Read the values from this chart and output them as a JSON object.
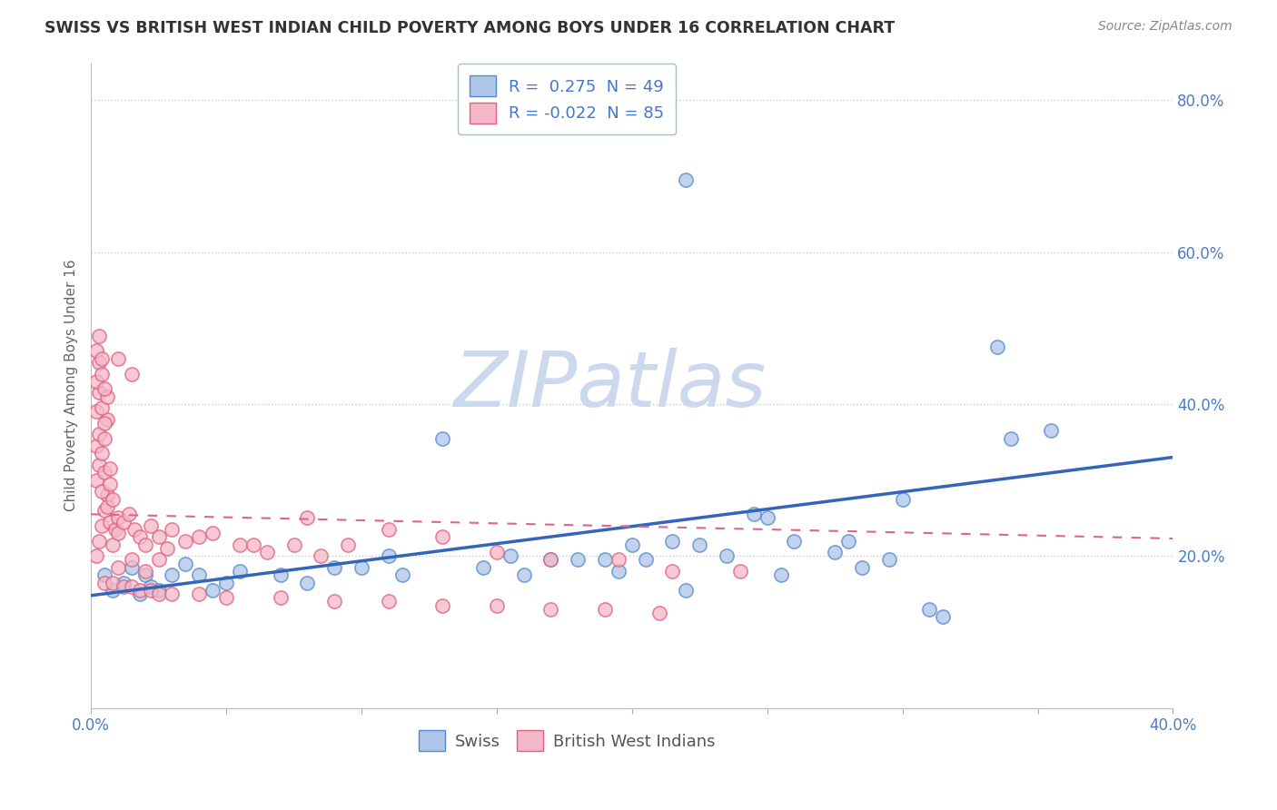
{
  "title": "SWISS VS BRITISH WEST INDIAN CHILD POVERTY AMONG BOYS UNDER 16 CORRELATION CHART",
  "source": "Source: ZipAtlas.com",
  "ylabel": "Child Poverty Among Boys Under 16",
  "xlim": [
    0.0,
    0.4
  ],
  "ylim": [
    0.0,
    0.85
  ],
  "x_ticks": [
    0.0,
    0.05,
    0.1,
    0.15,
    0.2,
    0.25,
    0.3,
    0.35,
    0.4
  ],
  "y_ticks": [
    0.0,
    0.2,
    0.4,
    0.6,
    0.8
  ],
  "y_tick_labels": [
    "",
    "20.0%",
    "40.0%",
    "60.0%",
    "80.0%"
  ],
  "x_tick_labels": [
    "0.0%",
    "",
    "",
    "",
    "",
    "",
    "",
    "",
    "40.0%"
  ],
  "swiss_R": 0.275,
  "swiss_N": 49,
  "bwi_R": -0.022,
  "bwi_N": 85,
  "swiss_color": "#aec6e8",
  "bwi_color": "#f4b8c8",
  "swiss_edge_color": "#5588cc",
  "bwi_edge_color": "#e06080",
  "swiss_line_color": "#3366bb",
  "bwi_line_color": "#dd6688",
  "watermark_color": "#ccd8ee",
  "background_color": "#ffffff",
  "grid_color": "#cccccc",
  "swiss_intercept": 0.148,
  "swiss_slope": 0.455,
  "bwi_intercept": 0.255,
  "bwi_slope": -0.08,
  "swiss_points_x": [
    0.005,
    0.008,
    0.012,
    0.015,
    0.018,
    0.02,
    0.022,
    0.025,
    0.03,
    0.035,
    0.04,
    0.045,
    0.05,
    0.055,
    0.07,
    0.08,
    0.09,
    0.1,
    0.11,
    0.115,
    0.13,
    0.145,
    0.155,
    0.16,
    0.17,
    0.18,
    0.19,
    0.195,
    0.2,
    0.205,
    0.215,
    0.22,
    0.225,
    0.235,
    0.245,
    0.25,
    0.255,
    0.26,
    0.275,
    0.28,
    0.285,
    0.295,
    0.3,
    0.31,
    0.315,
    0.335,
    0.34,
    0.355,
    0.22
  ],
  "swiss_points_y": [
    0.175,
    0.155,
    0.165,
    0.185,
    0.15,
    0.175,
    0.16,
    0.155,
    0.175,
    0.19,
    0.175,
    0.155,
    0.165,
    0.18,
    0.175,
    0.165,
    0.185,
    0.185,
    0.2,
    0.175,
    0.355,
    0.185,
    0.2,
    0.175,
    0.195,
    0.195,
    0.195,
    0.18,
    0.215,
    0.195,
    0.22,
    0.155,
    0.215,
    0.2,
    0.255,
    0.25,
    0.175,
    0.22,
    0.205,
    0.22,
    0.185,
    0.195,
    0.275,
    0.13,
    0.12,
    0.475,
    0.355,
    0.365,
    0.695
  ],
  "bwi_points_x": [
    0.002,
    0.003,
    0.004,
    0.005,
    0.006,
    0.007,
    0.008,
    0.009,
    0.01,
    0.002,
    0.003,
    0.004,
    0.005,
    0.006,
    0.007,
    0.008,
    0.002,
    0.003,
    0.004,
    0.005,
    0.006,
    0.007,
    0.002,
    0.003,
    0.004,
    0.005,
    0.006,
    0.002,
    0.003,
    0.004,
    0.005,
    0.002,
    0.003,
    0.004,
    0.01,
    0.012,
    0.014,
    0.016,
    0.018,
    0.02,
    0.022,
    0.025,
    0.028,
    0.03,
    0.035,
    0.04,
    0.045,
    0.055,
    0.065,
    0.075,
    0.085,
    0.01,
    0.015,
    0.02,
    0.025,
    0.06,
    0.08,
    0.095,
    0.11,
    0.13,
    0.15,
    0.17,
    0.195,
    0.215,
    0.24,
    0.005,
    0.008,
    0.012,
    0.015,
    0.018,
    0.022,
    0.025,
    0.03,
    0.04,
    0.05,
    0.07,
    0.09,
    0.11,
    0.13,
    0.15,
    0.17,
    0.19,
    0.21,
    0.01,
    0.015
  ],
  "bwi_points_y": [
    0.2,
    0.22,
    0.24,
    0.26,
    0.28,
    0.245,
    0.215,
    0.235,
    0.25,
    0.3,
    0.32,
    0.285,
    0.31,
    0.265,
    0.295,
    0.275,
    0.345,
    0.36,
    0.335,
    0.355,
    0.38,
    0.315,
    0.39,
    0.415,
    0.395,
    0.375,
    0.41,
    0.43,
    0.455,
    0.44,
    0.42,
    0.47,
    0.49,
    0.46,
    0.23,
    0.245,
    0.255,
    0.235,
    0.225,
    0.215,
    0.24,
    0.225,
    0.21,
    0.235,
    0.22,
    0.225,
    0.23,
    0.215,
    0.205,
    0.215,
    0.2,
    0.185,
    0.195,
    0.18,
    0.195,
    0.215,
    0.25,
    0.215,
    0.235,
    0.225,
    0.205,
    0.195,
    0.195,
    0.18,
    0.18,
    0.165,
    0.165,
    0.16,
    0.16,
    0.155,
    0.155,
    0.15,
    0.15,
    0.15,
    0.145,
    0.145,
    0.14,
    0.14,
    0.135,
    0.135,
    0.13,
    0.13,
    0.125,
    0.46,
    0.44
  ]
}
